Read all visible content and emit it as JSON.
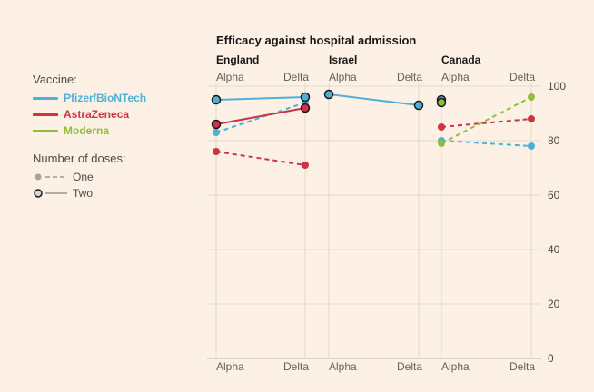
{
  "chart_data": {
    "type": "line",
    "title": "Efficacy against hospital admission",
    "panels": [
      {
        "name": "England",
        "categories": [
          "Alpha",
          "Delta"
        ],
        "series": [
          {
            "vaccine": "Pfizer/BioNTech",
            "doses": "Two",
            "values": [
              95,
              96
            ]
          },
          {
            "vaccine": "Pfizer/BioNTech",
            "doses": "One",
            "values": [
              83,
              94
            ]
          },
          {
            "vaccine": "AstraZeneca",
            "doses": "Two",
            "values": [
              86,
              92
            ]
          },
          {
            "vaccine": "AstraZeneca",
            "doses": "One",
            "values": [
              76,
              71
            ]
          }
        ]
      },
      {
        "name": "Israel",
        "categories": [
          "Alpha",
          "Delta"
        ],
        "series": [
          {
            "vaccine": "Pfizer/BioNTech",
            "doses": "Two",
            "values": [
              97,
              93
            ]
          }
        ]
      },
      {
        "name": "Canada",
        "categories": [
          "Alpha",
          "Delta"
        ],
        "series": [
          {
            "vaccine": "Pfizer/BioNTech",
            "doses": "Two",
            "values": [
              95,
              null
            ]
          },
          {
            "vaccine": "Moderna",
            "doses": "Two",
            "values": [
              94,
              null
            ]
          },
          {
            "vaccine": "Pfizer/BioNTech",
            "doses": "One",
            "values": [
              80,
              78
            ]
          },
          {
            "vaccine": "AstraZeneca",
            "doses": "One",
            "values": [
              85,
              88
            ]
          },
          {
            "vaccine": "Moderna",
            "doses": "One",
            "values": [
              79,
              96
            ]
          }
        ]
      }
    ],
    "ylim": [
      0,
      100
    ],
    "yticks": [
      0,
      20,
      40,
      60,
      80,
      100
    ],
    "grid": true,
    "legend": "left"
  },
  "legend": {
    "vaccine_heading": "Vaccine:",
    "vaccines": [
      {
        "name": "Pfizer/BioNTech",
        "color": "#4fb0d6"
      },
      {
        "name": "AstraZeneca",
        "color": "#cc3344"
      },
      {
        "name": "Moderna",
        "color": "#8fbf3a"
      }
    ],
    "doses_heading": "Number of doses:",
    "doses": [
      {
        "label": "One",
        "style": "dashed"
      },
      {
        "label": "Two",
        "style": "solid"
      }
    ]
  }
}
